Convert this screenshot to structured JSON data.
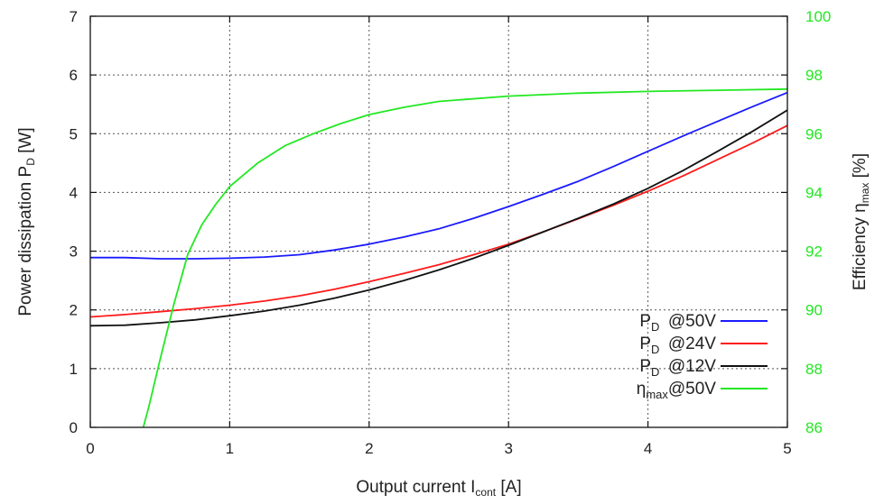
{
  "chart_data": {
    "type": "line",
    "xlabel": {
      "main": "Output current I",
      "sub": "cont",
      "unit": " [A]"
    },
    "ylabel": {
      "main": "Power dissipation P",
      "sub": "D",
      "unit": " [W]"
    },
    "y2label": {
      "main": "Efficiency η",
      "sub": "max",
      "unit": " [%]"
    },
    "xlim": [
      0,
      5
    ],
    "ylim": [
      0,
      7
    ],
    "y2lim": [
      86,
      100
    ],
    "xticks": [
      "0",
      "1",
      "2",
      "3",
      "4",
      "5"
    ],
    "yticks": [
      "0",
      "1",
      "2",
      "3",
      "4",
      "5",
      "6",
      "7"
    ],
    "y2ticks": [
      "86",
      "88",
      "90",
      "92",
      "94",
      "96",
      "98",
      "100"
    ],
    "grid": true,
    "legend_position": "bottom-right",
    "colors": {
      "pd50": "#1a1aff",
      "pd24": "#ff1a1a",
      "pd12": "#111111",
      "eta": "#22e822",
      "y2axis": "#22e822"
    },
    "series": [
      {
        "key": "pd50",
        "axis": "left",
        "name_main": "P",
        "name_sub": "D",
        "name_cond": "@50V",
        "x": [
          0,
          0.25,
          0.5,
          0.75,
          1.0,
          1.25,
          1.5,
          1.75,
          2.0,
          2.25,
          2.5,
          2.75,
          3.0,
          3.25,
          3.5,
          3.75,
          4.0,
          4.25,
          4.5,
          4.75,
          5.0
        ],
        "y": [
          2.89,
          2.89,
          2.87,
          2.87,
          2.88,
          2.9,
          2.94,
          3.02,
          3.12,
          3.24,
          3.38,
          3.56,
          3.76,
          3.97,
          4.19,
          4.44,
          4.7,
          4.96,
          5.21,
          5.46,
          5.7
        ]
      },
      {
        "key": "pd24",
        "axis": "left",
        "name_main": "P",
        "name_sub": "D",
        "name_cond": "@24V",
        "x": [
          0,
          0.25,
          0.5,
          0.75,
          1.0,
          1.25,
          1.5,
          1.75,
          2.0,
          2.25,
          2.5,
          2.75,
          3.0,
          3.25,
          3.5,
          3.75,
          4.0,
          4.25,
          4.5,
          4.75,
          5.0
        ],
        "y": [
          1.88,
          1.92,
          1.97,
          2.02,
          2.08,
          2.15,
          2.24,
          2.35,
          2.48,
          2.62,
          2.77,
          2.94,
          3.12,
          3.33,
          3.55,
          3.78,
          4.02,
          4.28,
          4.56,
          4.84,
          5.14
        ]
      },
      {
        "key": "pd12",
        "axis": "left",
        "name_main": "P",
        "name_sub": "D",
        "name_cond": "@12V",
        "x": [
          0,
          0.25,
          0.5,
          0.75,
          1.0,
          1.25,
          1.5,
          1.75,
          2.0,
          2.25,
          2.5,
          2.75,
          3.0,
          3.25,
          3.5,
          3.75,
          4.0,
          4.25,
          4.5,
          4.75,
          5.0
        ],
        "y": [
          1.73,
          1.74,
          1.78,
          1.83,
          1.9,
          1.98,
          2.08,
          2.2,
          2.34,
          2.5,
          2.68,
          2.88,
          3.1,
          3.33,
          3.56,
          3.8,
          4.07,
          4.37,
          4.7,
          5.04,
          5.4
        ]
      },
      {
        "key": "eta",
        "axis": "right",
        "name_main": "η",
        "name_sub": "max",
        "name_cond": "@50V",
        "x": [
          0.38,
          0.42,
          0.5,
          0.6,
          0.7,
          0.8,
          0.9,
          1.0,
          1.2,
          1.4,
          1.6,
          1.8,
          2.0,
          2.25,
          2.5,
          3.0,
          3.5,
          4.0,
          4.5,
          5.0
        ],
        "y": [
          86.0,
          86.7,
          88.3,
          90.2,
          91.9,
          92.9,
          93.6,
          94.2,
          95.0,
          95.6,
          96.0,
          96.35,
          96.65,
          96.9,
          97.1,
          97.28,
          97.38,
          97.44,
          97.48,
          97.52
        ]
      }
    ]
  }
}
